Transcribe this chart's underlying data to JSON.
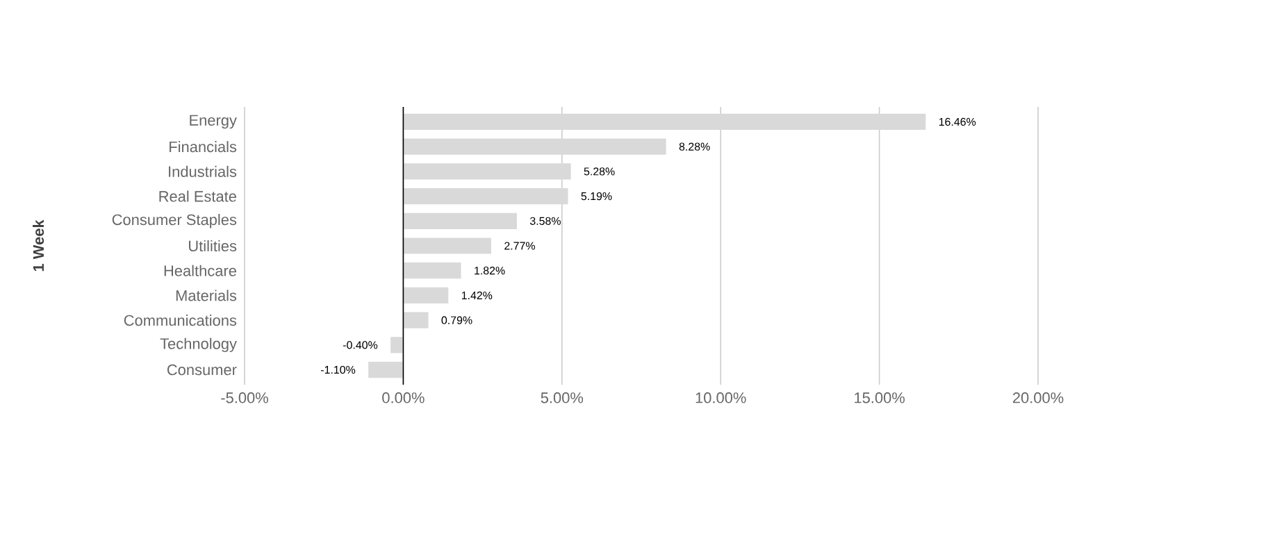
{
  "chart_data": {
    "type": "bar",
    "orientation": "horizontal",
    "ylabel": "1 Week",
    "categories": [
      "Energy",
      "Financials",
      "Industrials",
      "Real Estate",
      "Consumer Staples",
      "Utilities",
      "Healthcare",
      "Materials",
      "Communications",
      "Technology",
      "Consumer"
    ],
    "values": [
      16.46,
      8.28,
      5.28,
      5.19,
      3.58,
      2.77,
      1.82,
      1.42,
      0.79,
      -0.4,
      -1.1
    ],
    "value_labels": [
      "16.46%",
      "8.28%",
      "5.28%",
      "5.19%",
      "3.58%",
      "2.77%",
      "1.82%",
      "1.42%",
      "0.79%",
      "-0.40%",
      "-1.10%"
    ],
    "color": "#d9d9d9",
    "xlim": [
      -5,
      20
    ],
    "xticks": [
      {
        "value": -5,
        "label": "-5.00%"
      },
      {
        "value": 0,
        "label": "0.00%"
      },
      {
        "value": 5,
        "label": "5.00%"
      },
      {
        "value": 10,
        "label": "10.00%"
      },
      {
        "value": 15,
        "label": "15.00%"
      },
      {
        "value": 20,
        "label": "20.00%"
      }
    ],
    "grid": "x"
  }
}
